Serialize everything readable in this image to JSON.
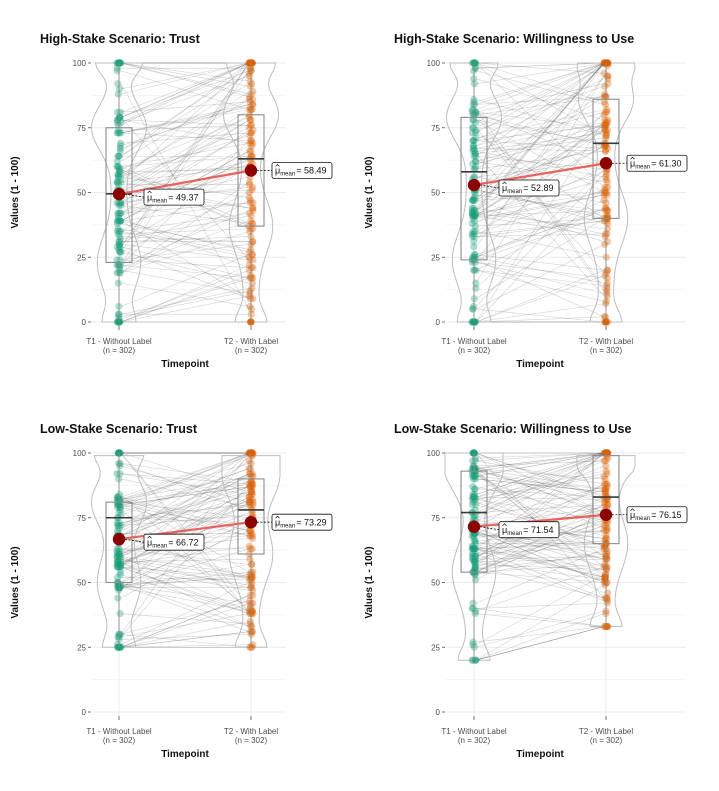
{
  "chart_data": [
    {
      "type": "box-violin-paired",
      "title": "High-Stake Scenario: Trust",
      "xlabel": "Timepoint",
      "ylabel": "Values (1 - 100)",
      "ylim": [
        0,
        100
      ],
      "yticks": [
        0,
        25,
        50,
        75,
        100
      ],
      "categories": [
        "T1 - Without Label",
        "T2 - With Label"
      ],
      "n_labels": [
        "(n = 302)",
        "(n = 302)"
      ],
      "box": [
        {
          "q1": 23,
          "median": 49.5,
          "q3": 75,
          "min": 0,
          "max": 100
        },
        {
          "q1": 37,
          "median": 63,
          "q3": 80,
          "min": 0,
          "max": 100
        }
      ],
      "means": [
        49.37,
        58.49
      ],
      "mean_labels": [
        "= 49.37",
        "= 58.49"
      ]
    },
    {
      "type": "box-violin-paired",
      "title": "High-Stake Scenario: Willingness to Use",
      "xlabel": "Timepoint",
      "ylabel": "Values (1 - 100)",
      "ylim": [
        0,
        100
      ],
      "yticks": [
        0,
        25,
        50,
        75,
        100
      ],
      "categories": [
        "T1 - Without Label",
        "T2 - With Label"
      ],
      "n_labels": [
        "(n = 302)",
        "(n = 302)"
      ],
      "box": [
        {
          "q1": 24,
          "median": 58,
          "q3": 79,
          "min": 0,
          "max": 100
        },
        {
          "q1": 40,
          "median": 69,
          "q3": 86,
          "min": 0,
          "max": 100
        }
      ],
      "means": [
        52.89,
        61.3
      ],
      "mean_labels": [
        "= 52.89",
        "= 61.30"
      ]
    },
    {
      "type": "box-violin-paired",
      "title": "Low-Stake Scenario: Trust",
      "xlabel": "Timepoint",
      "ylabel": "Values (1 - 100)",
      "ylim": [
        0,
        100
      ],
      "yticks": [
        0,
        25,
        50,
        75,
        100
      ],
      "categories": [
        "T1 - Without Label",
        "T2 - With Label"
      ],
      "n_labels": [
        "(n = 302)",
        "(n = 302)"
      ],
      "box": [
        {
          "q1": 50,
          "median": 75,
          "q3": 81,
          "min": 25,
          "max": 100
        },
        {
          "q1": 61,
          "median": 78,
          "q3": 90,
          "min": 25,
          "max": 100
        }
      ],
      "means": [
        66.72,
        73.29
      ],
      "mean_labels": [
        "= 66.72",
        "= 73.29"
      ]
    },
    {
      "type": "box-violin-paired",
      "title": "Low-Stake Scenario: Willingness to Use",
      "xlabel": "Timepoint",
      "ylabel": "Values (1 - 100)",
      "ylim": [
        0,
        100
      ],
      "yticks": [
        0,
        25,
        50,
        75,
        100
      ],
      "categories": [
        "T1 - Without Label",
        "T2 - With Label"
      ],
      "n_labels": [
        "(n = 302)",
        "(n = 302)"
      ],
      "box": [
        {
          "q1": 54,
          "median": 77,
          "q3": 93,
          "min": 20,
          "max": 100
        },
        {
          "q1": 65,
          "median": 83,
          "q3": 99,
          "min": 33,
          "max": 100
        }
      ],
      "means": [
        71.54,
        76.15
      ],
      "mean_labels": [
        "= 71.54",
        "= 76.15"
      ]
    }
  ],
  "mean_symbol": "μ",
  "mean_subscript": "mean",
  "colors": {
    "t1": "#1b9e77",
    "t2": "#d95f02",
    "mean_point": "#8b0000",
    "mean_line": "#e8534f",
    "grid": "#ebebeb",
    "box": "#8c8c8c",
    "violin": "#bdbdbd"
  }
}
